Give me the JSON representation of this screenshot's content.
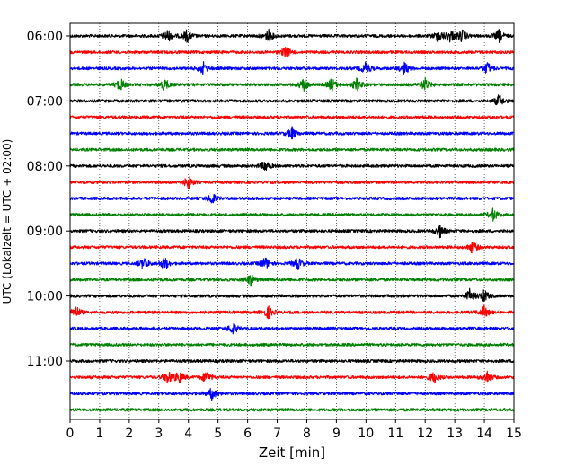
{
  "chart_data": {
    "type": "line",
    "title": "",
    "xlabel": "Zeit  [min]",
    "ylabel": "UTC (Lokalzeit = UTC + 02:00)",
    "xlim": [
      0,
      15
    ],
    "x_ticks": [
      0,
      1,
      2,
      3,
      4,
      5,
      6,
      7,
      8,
      9,
      10,
      11,
      12,
      13,
      14,
      15
    ],
    "x_grid": "dotted vertical lines at every minute",
    "y_tick_labels": [
      "06:00",
      "07:00",
      "08:00",
      "09:00",
      "10:00",
      "11:00"
    ],
    "trace_interval_minutes": 15,
    "color_cycle": [
      "#000000",
      "#ff0000",
      "#0000ff",
      "#008000"
    ],
    "series": [
      {
        "start": "06:00",
        "color": "#000000",
        "events_min": [
          3.3,
          3.95,
          6.7,
          12.45,
          12.85,
          13.25,
          14.5
        ]
      },
      {
        "start": "06:15",
        "color": "#ff0000",
        "events_min": [
          7.3
        ]
      },
      {
        "start": "06:30",
        "color": "#0000ff",
        "events_min": [
          4.5,
          10.0,
          11.3,
          14.1
        ]
      },
      {
        "start": "06:45",
        "color": "#008000",
        "events_min": [
          1.7,
          3.2,
          7.9,
          8.85,
          9.7,
          12.0
        ]
      },
      {
        "start": "07:00",
        "color": "#000000",
        "events_min": [
          14.5
        ]
      },
      {
        "start": "07:15",
        "color": "#ff0000",
        "events_min": []
      },
      {
        "start": "07:30",
        "color": "#0000ff",
        "events_min": [
          7.5
        ]
      },
      {
        "start": "07:45",
        "color": "#008000",
        "events_min": []
      },
      {
        "start": "08:00",
        "color": "#000000",
        "events_min": [
          6.6
        ]
      },
      {
        "start": "08:15",
        "color": "#ff0000",
        "events_min": [
          4.0
        ]
      },
      {
        "start": "08:30",
        "color": "#0000ff",
        "events_min": [
          4.8
        ]
      },
      {
        "start": "08:45",
        "color": "#008000",
        "events_min": [
          14.3
        ]
      },
      {
        "start": "09:00",
        "color": "#000000",
        "events_min": [
          12.5
        ]
      },
      {
        "start": "09:15",
        "color": "#ff0000",
        "events_min": [
          13.6
        ]
      },
      {
        "start": "09:30",
        "color": "#0000ff",
        "events_min": [
          2.5,
          3.2,
          6.6,
          7.7
        ]
      },
      {
        "start": "09:45",
        "color": "#008000",
        "events_min": [
          6.1
        ]
      },
      {
        "start": "10:00",
        "color": "#000000",
        "events_min": [
          13.5,
          14.0
        ]
      },
      {
        "start": "10:15",
        "color": "#ff0000",
        "events_min": [
          0.2,
          6.7,
          14.0
        ]
      },
      {
        "start": "10:30",
        "color": "#0000ff",
        "events_min": [
          5.5
        ]
      },
      {
        "start": "10:45",
        "color": "#008000",
        "events_min": []
      },
      {
        "start": "11:00",
        "color": "#000000",
        "events_min": []
      },
      {
        "start": "11:15",
        "color": "#ff0000",
        "events_min": [
          3.3,
          3.7,
          4.6,
          12.3,
          14.1
        ]
      },
      {
        "start": "11:30",
        "color": "#0000ff",
        "events_min": [
          4.8
        ]
      },
      {
        "start": "11:45",
        "color": "#008000",
        "events_min": []
      }
    ]
  }
}
